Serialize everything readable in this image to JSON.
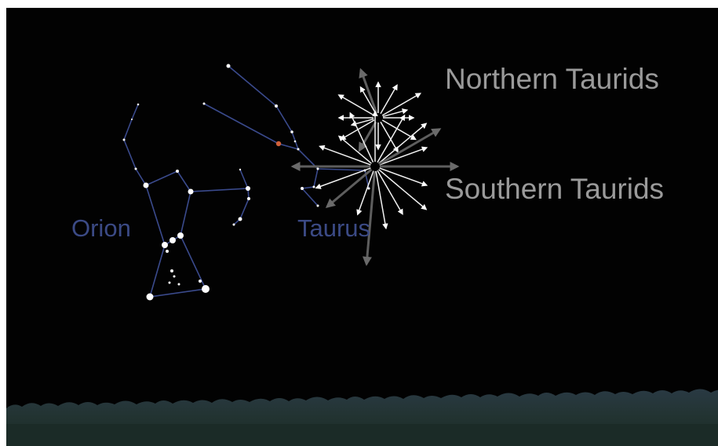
{
  "labels": {
    "northern": "Northern Taurids",
    "southern": "Southern Taurids",
    "orion": "Orion",
    "taurus": "Taurus"
  }
}
